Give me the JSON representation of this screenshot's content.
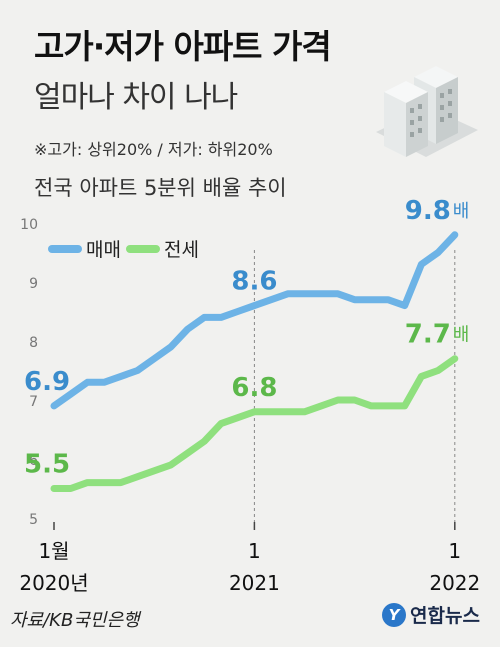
{
  "title": "고가·저가 아파트 가격",
  "subtitle": "얼마나 차이 나나",
  "note": "※고가: 상위20% / 저가: 하위20%",
  "chart_heading": "전국 아파트 5분위 배율 추이",
  "source": "자료/KB국민은행",
  "brand": {
    "logo_char": "Y",
    "name": "연합뉴스"
  },
  "colors": {
    "sale": "#6db3e6",
    "jeonse": "#8fe07e",
    "sale_label": "#3a8ccc",
    "jeonse_label": "#5cb84a"
  },
  "chart_data": {
    "type": "line",
    "x_start": "2020-01",
    "x_ticks": [
      {
        "index": 0,
        "line1": "1월",
        "line2": "2020년"
      },
      {
        "index": 12,
        "line1": "1",
        "line2": "2021"
      },
      {
        "index": 24,
        "line1": "1",
        "line2": "2022"
      }
    ],
    "y_ticks": [
      5,
      6,
      7,
      8,
      9,
      10
    ],
    "ylim": [
      5,
      10
    ],
    "unit": "배",
    "series": [
      {
        "name": "매매",
        "values": [
          6.9,
          7.1,
          7.3,
          7.3,
          7.4,
          7.5,
          7.7,
          7.9,
          8.2,
          8.4,
          8.4,
          8.5,
          8.6,
          8.7,
          8.8,
          8.8,
          8.8,
          8.8,
          8.7,
          8.7,
          8.7,
          8.6,
          9.3,
          9.5,
          9.8
        ],
        "labels": [
          {
            "index": 0,
            "text": "6.9"
          },
          {
            "index": 12,
            "text": "8.6"
          },
          {
            "index": 24,
            "text": "9.8",
            "unit": true
          }
        ]
      },
      {
        "name": "전세",
        "values": [
          5.5,
          5.5,
          5.6,
          5.6,
          5.6,
          5.7,
          5.8,
          5.9,
          6.1,
          6.3,
          6.6,
          6.7,
          6.8,
          6.8,
          6.8,
          6.8,
          6.9,
          7.0,
          7.0,
          6.9,
          6.9,
          6.9,
          7.4,
          7.5,
          7.7
        ],
        "labels": [
          {
            "index": 0,
            "text": "5.5"
          },
          {
            "index": 12,
            "text": "6.8"
          },
          {
            "index": 24,
            "text": "7.7",
            "unit": true
          }
        ]
      }
    ]
  }
}
